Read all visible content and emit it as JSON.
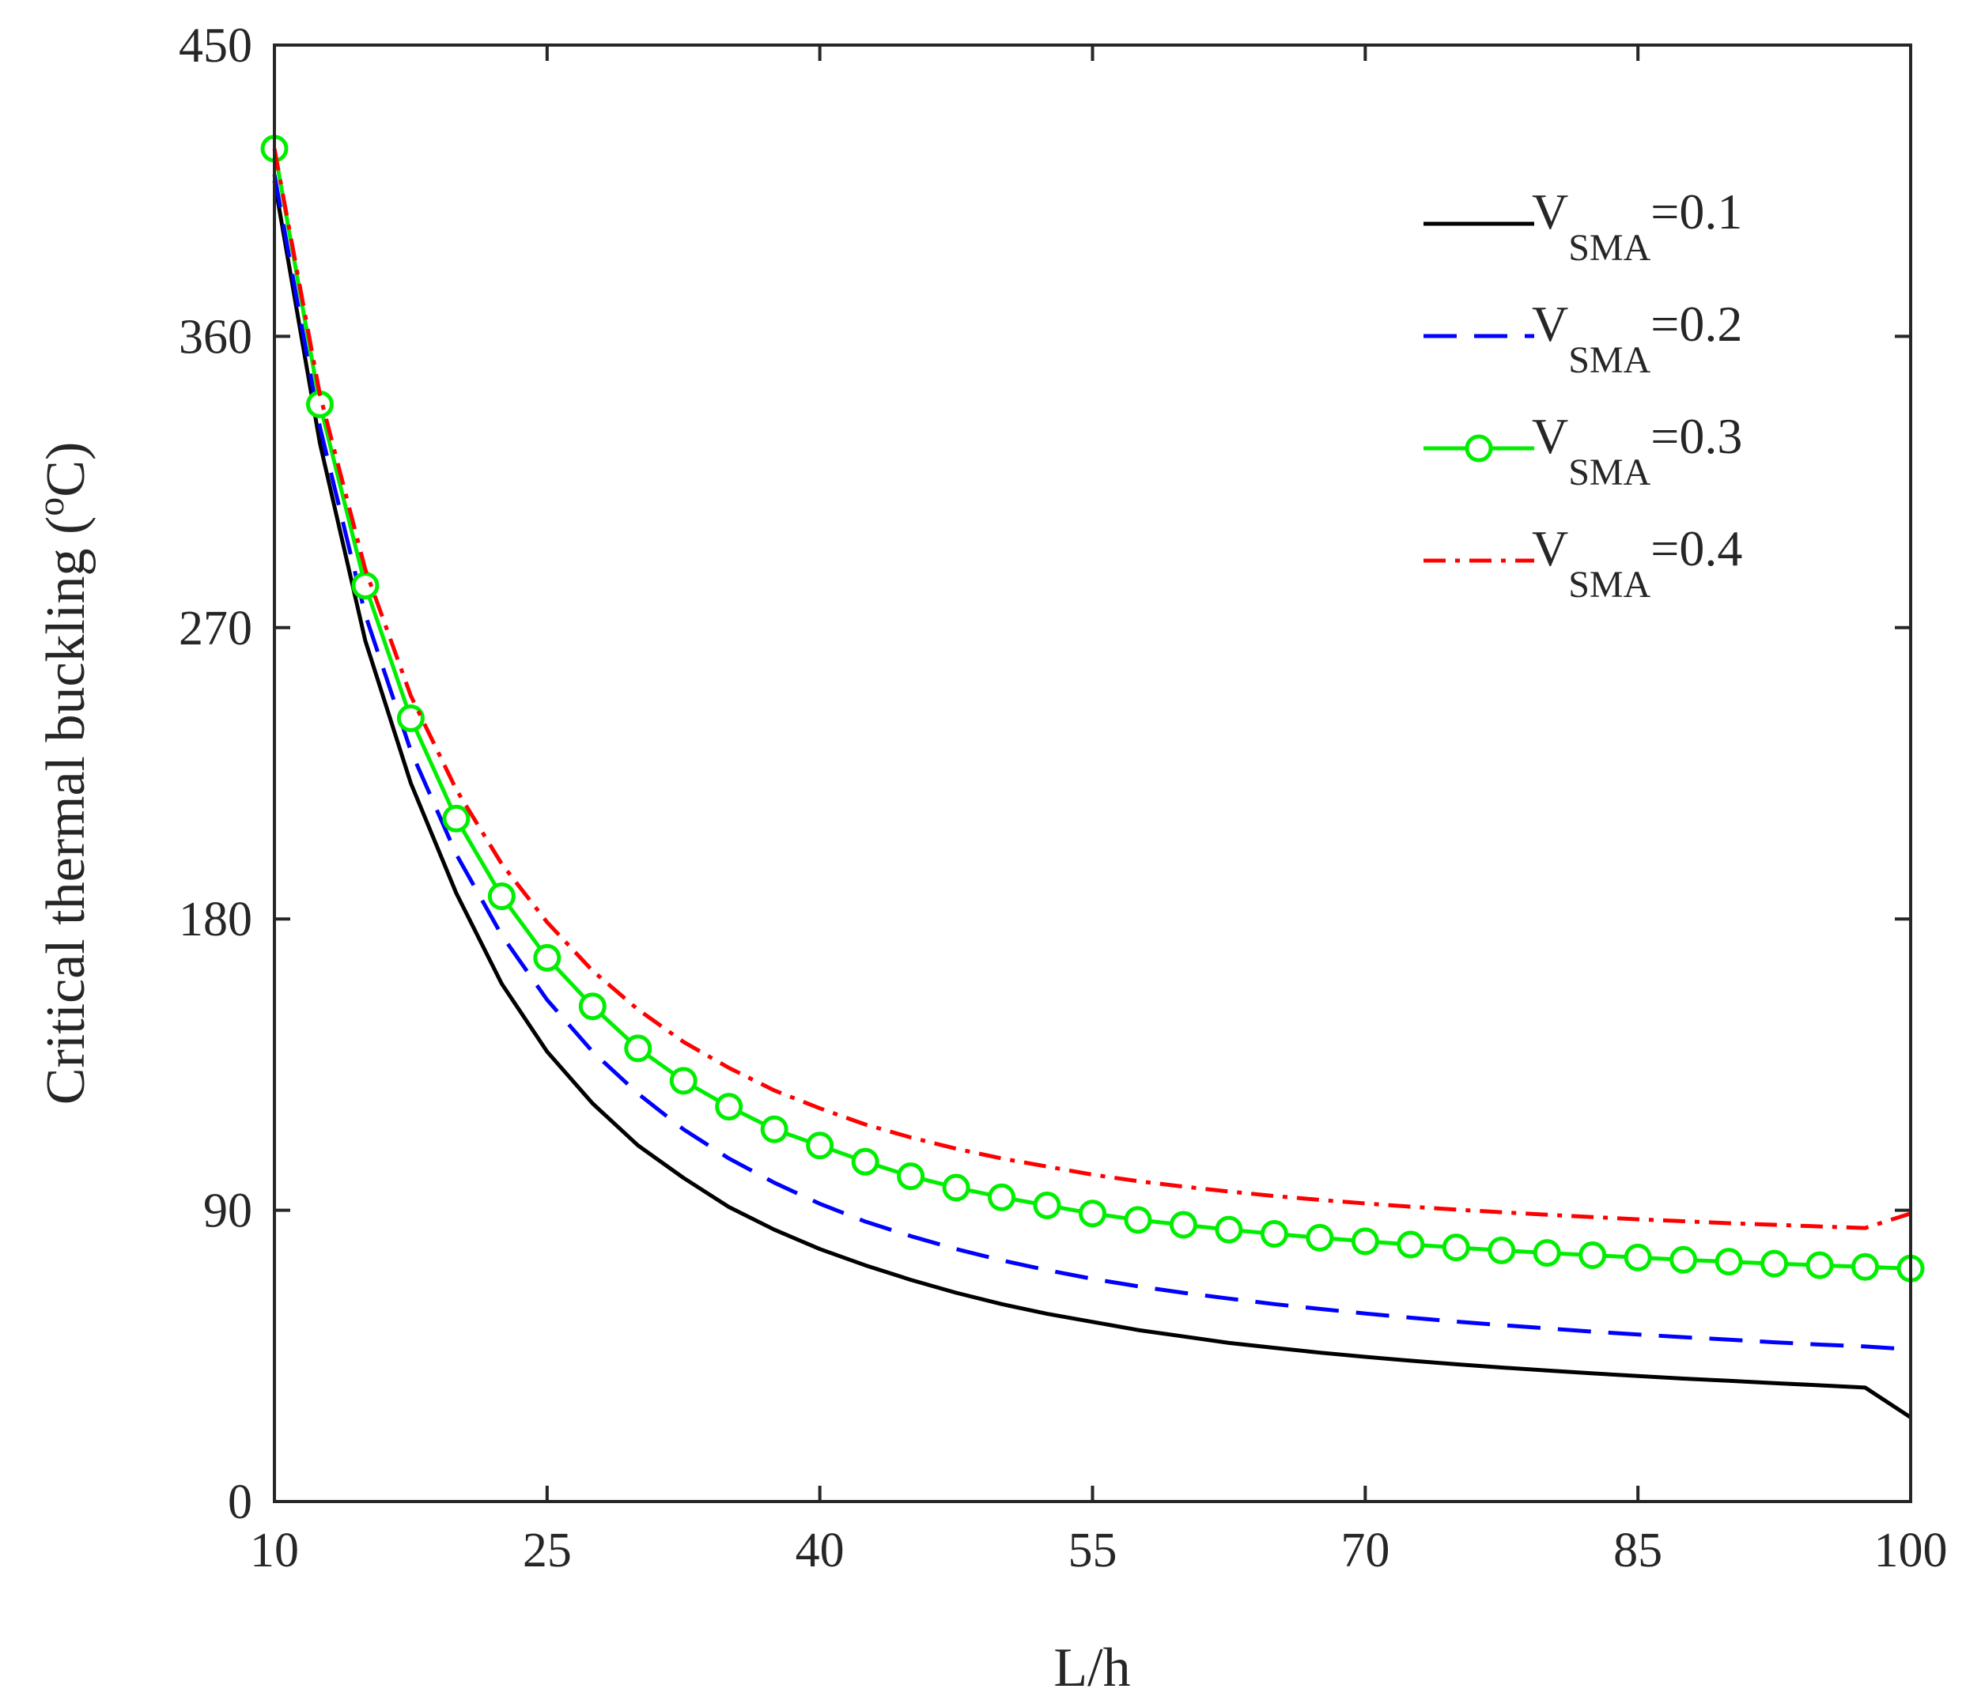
{
  "chart_data": {
    "type": "line",
    "title": "",
    "xlabel": "L/h",
    "ylabel_main": "Critical thermal buckling (",
    "ylabel_sup": "o",
    "ylabel_tail": "C)",
    "xlim": [
      10,
      100
    ],
    "ylim": [
      0,
      450
    ],
    "xticks": [
      "10",
      "25",
      "40",
      "55",
      "70",
      "85",
      "100"
    ],
    "yticks": [
      "0",
      "90",
      "180",
      "270",
      "360",
      "450"
    ],
    "grid": false,
    "legend_position": "top-right",
    "x": [
      10,
      12.5,
      15,
      17.5,
      20,
      22.5,
      25,
      27.5,
      30,
      32.5,
      35,
      37.5,
      40,
      42.5,
      45,
      47.5,
      50,
      52.5,
      55,
      57.5,
      60,
      62.5,
      65,
      67.5,
      70,
      72.5,
      75,
      77.5,
      80,
      82.5,
      85,
      87.5,
      90,
      92.5,
      95,
      97.5,
      100
    ],
    "series": [
      {
        "name_main": "V",
        "name_sub": "SMA",
        "name_tail": "=0.1",
        "color": "#000000",
        "style": "solid",
        "marker": "none",
        "values": [
          408,
          327,
          266,
          222,
          188,
          160,
          139,
          123,
          110,
          100,
          91,
          84,
          78,
          73,
          68.5,
          64.5,
          61,
          58,
          55.5,
          53,
          51,
          49,
          47.5,
          46,
          44.7,
          43.5,
          42.4,
          41.4,
          40.5,
          39.6,
          38.8,
          38,
          37.3,
          36.6,
          35.9,
          35.2,
          26
        ]
      },
      {
        "name_main": "V",
        "name_sub": "SMA",
        "name_tail": "=0.2",
        "color": "#0000ff",
        "style": "dashed",
        "marker": "none",
        "values": [
          410,
          332,
          274,
          232,
          200,
          175,
          155,
          139,
          126,
          115,
          106,
          98.5,
          92,
          86.5,
          82,
          78,
          74.5,
          71.5,
          68.8,
          66.5,
          64.5,
          62.7,
          61,
          59.5,
          58.1,
          56.8,
          55.6,
          54.5,
          53.5,
          52.5,
          51.6,
          50.8,
          50,
          49.2,
          48.5,
          47.9,
          47
        ]
      },
      {
        "name_main": "V",
        "name_sub": "SMA",
        "name_tail": "=0.3",
        "color": "#00ee00",
        "style": "solid",
        "marker": "circle",
        "values": [
          418,
          339,
          283,
          242,
          211,
          187,
          168,
          153,
          140,
          130,
          122,
          115,
          110,
          105,
          100.5,
          97,
          94,
          91.5,
          89,
          87,
          85.5,
          84,
          82.7,
          81.5,
          80.4,
          79.4,
          78.5,
          77.6,
          76.8,
          76.1,
          75.4,
          74.7,
          74.1,
          73.5,
          73,
          72.5,
          72
        ]
      },
      {
        "name_main": "V",
        "name_sub": "SMA",
        "name_tail": "=0.4",
        "color": "#ff0000",
        "style": "dashdot",
        "marker": "none",
        "values": [
          418,
          342,
          288,
          249,
          220,
          197,
          179,
          164,
          152,
          142,
          134,
          127,
          121.5,
          116.5,
          112.5,
          109,
          106,
          103.5,
          101,
          99,
          97.3,
          95.8,
          94.4,
          93.2,
          92.1,
          91.1,
          90.2,
          89.4,
          88.6,
          87.9,
          87.2,
          86.6,
          86,
          85.5,
          85,
          84.5,
          89
        ]
      }
    ]
  }
}
